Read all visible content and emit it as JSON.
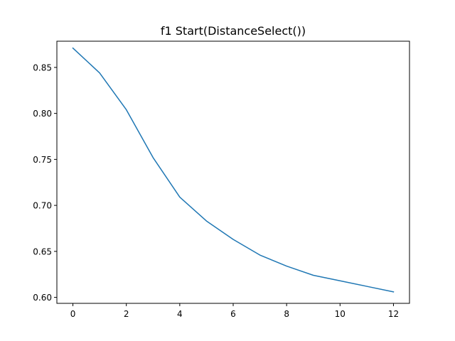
{
  "chart_data": {
    "type": "line",
    "title": "f1 Start(DistanceSelect())",
    "xlabel": "",
    "ylabel": "",
    "xlim": [
      -0.6,
      12.6
    ],
    "ylim": [
      0.5935,
      0.8785
    ],
    "x_ticks": [
      0,
      2,
      4,
      6,
      8,
      10,
      12
    ],
    "x_tick_labels": [
      "0",
      "2",
      "4",
      "6",
      "8",
      "10",
      "12"
    ],
    "y_ticks": [
      0.6,
      0.65,
      0.7,
      0.75,
      0.8,
      0.85
    ],
    "y_tick_labels": [
      "0.60",
      "0.65",
      "0.70",
      "0.75",
      "0.80",
      "0.85"
    ],
    "grid": false,
    "series": [
      {
        "color": "#1f77b4",
        "x": [
          0,
          1,
          2,
          3,
          4,
          5,
          6,
          7,
          8,
          9,
          10,
          11,
          12
        ],
        "y": [
          0.871,
          0.844,
          0.804,
          0.752,
          0.709,
          0.683,
          0.663,
          0.646,
          0.634,
          0.624,
          0.618,
          0.612,
          0.606
        ]
      }
    ]
  }
}
